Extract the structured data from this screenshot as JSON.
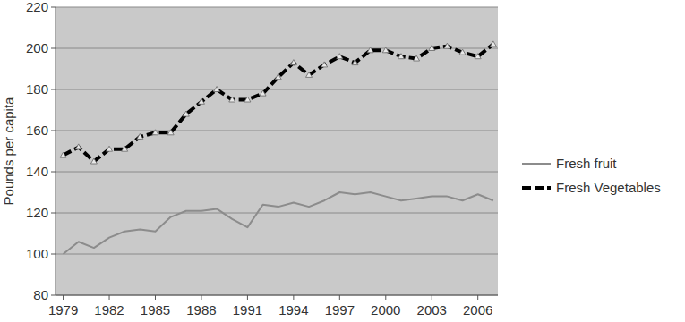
{
  "chart_data": {
    "type": "line",
    "y_label": "Pounds per capita",
    "x": [
      1979,
      1980,
      1981,
      1982,
      1983,
      1984,
      1985,
      1986,
      1987,
      1988,
      1989,
      1990,
      1991,
      1992,
      1993,
      1994,
      1995,
      1996,
      1997,
      1998,
      1999,
      2000,
      2001,
      2002,
      2003,
      2004,
      2005,
      2006,
      2007
    ],
    "series": [
      {
        "name": "Fresh fruit",
        "color": "#8c8c8c",
        "line_style": "solid",
        "marker": "none",
        "values": [
          100,
          106,
          103,
          108,
          111,
          112,
          111,
          118,
          121,
          121,
          122,
          117,
          113,
          124,
          123,
          125,
          123,
          126,
          130,
          129,
          130,
          128,
          126,
          127,
          128,
          128,
          126,
          129,
          126
        ]
      },
      {
        "name": "Fresh Vegetables",
        "color": "#000000",
        "line_style": "dashed",
        "marker": "triangle",
        "values": [
          148,
          152,
          145,
          151,
          151,
          157,
          159,
          159,
          168,
          174,
          180,
          175,
          175,
          178,
          186,
          193,
          187,
          192,
          196,
          193,
          199,
          199,
          196,
          195,
          200,
          201,
          198,
          196,
          202
        ]
      }
    ],
    "xlim": [
      1978.5,
      2007.3
    ],
    "xticks": [
      1979,
      1982,
      1985,
      1988,
      1991,
      1994,
      1997,
      2000,
      2003,
      2006
    ],
    "ylim": [
      80,
      220
    ],
    "yticks": [
      80,
      100,
      120,
      140,
      160,
      180,
      200,
      220
    ],
    "grid": true,
    "legend": "right"
  }
}
